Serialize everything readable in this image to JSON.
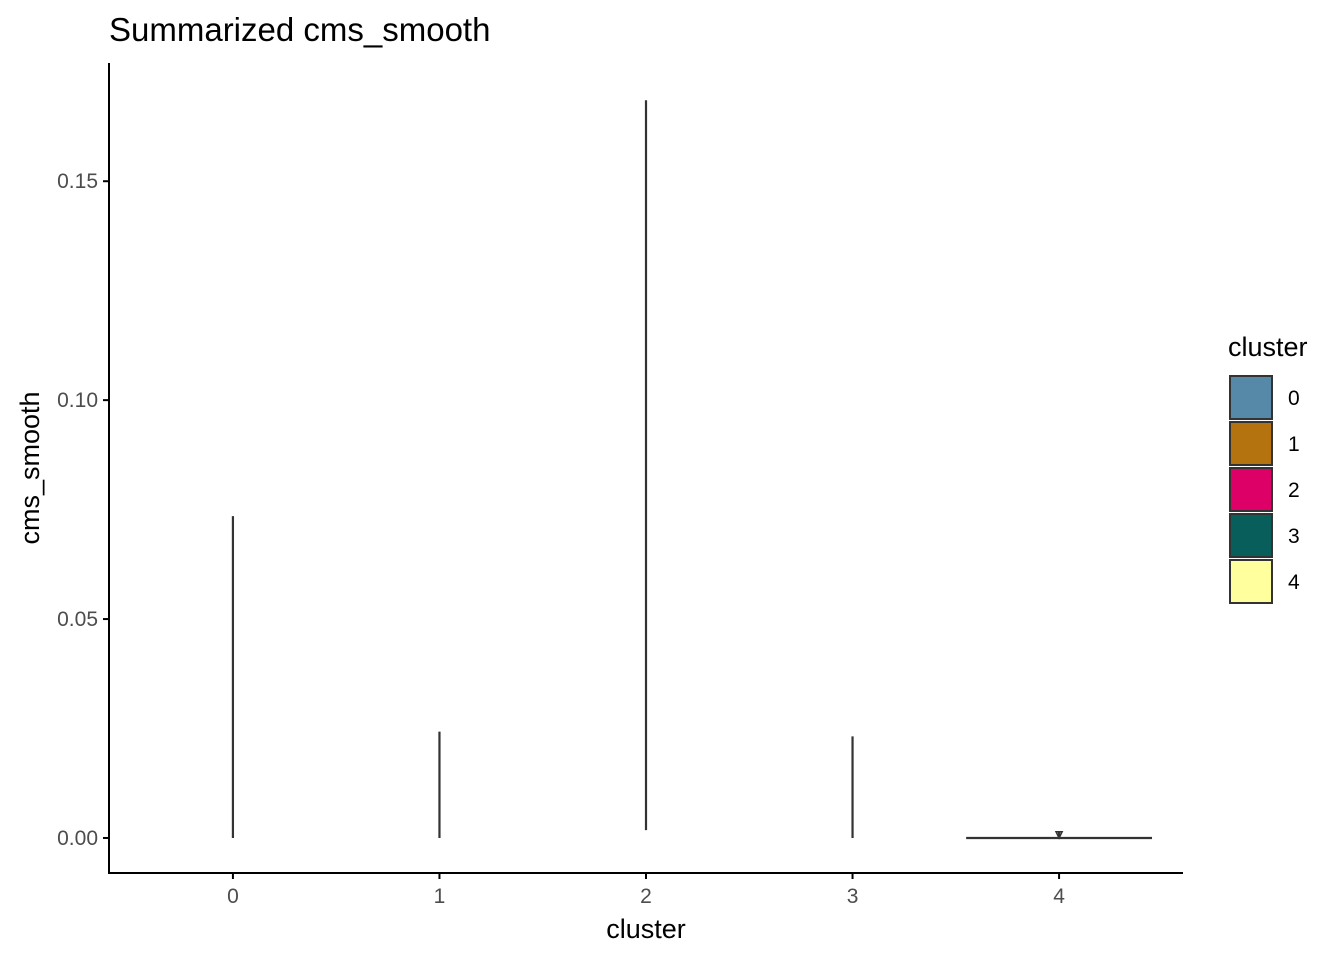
{
  "chart_data": {
    "type": "violin",
    "title": "Summarized cms_smooth",
    "xlabel": "cluster",
    "ylabel": "cms_smooth",
    "categories": [
      "0",
      "1",
      "2",
      "3",
      "4"
    ],
    "y_ticks": [
      0.0,
      0.05,
      0.1,
      0.15
    ],
    "y_tick_labels": [
      "0.00",
      "0.05",
      "0.10",
      "0.15"
    ],
    "ylim": [
      -0.008,
      0.177
    ],
    "grid": false,
    "legend": {
      "title": "cluster",
      "position": "right",
      "entries": [
        {
          "label": "0",
          "color": "#5689A8"
        },
        {
          "label": "1",
          "color": "#B5730F"
        },
        {
          "label": "2",
          "color": "#DC0067"
        },
        {
          "label": "3",
          "color": "#075E5B"
        },
        {
          "label": "4",
          "color": "#FFFF9E"
        }
      ]
    },
    "series": [
      {
        "category": "0",
        "min": 0.0,
        "max": 0.0735
      },
      {
        "category": "1",
        "min": 0.0,
        "max": 0.0243
      },
      {
        "category": "2",
        "min": 0.0018,
        "max": 0.1685
      },
      {
        "category": "3",
        "min": 0.0,
        "max": 0.0232
      },
      {
        "category": "4",
        "min": 0.0,
        "max": 0.0014
      }
    ]
  }
}
